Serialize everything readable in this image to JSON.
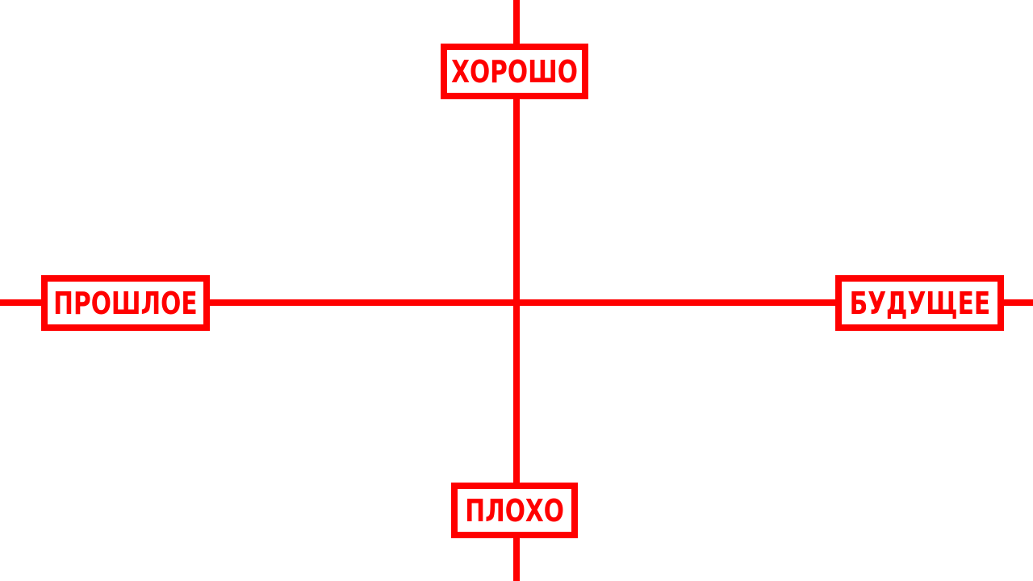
{
  "colors": {
    "accent": "#ff0000",
    "background": "#ffffff"
  },
  "labels": {
    "top": "ХОРОШО",
    "left": "ПРОШЛОЕ",
    "right": "БУДУЩЕЕ",
    "bottom": "ПЛОХО"
  }
}
